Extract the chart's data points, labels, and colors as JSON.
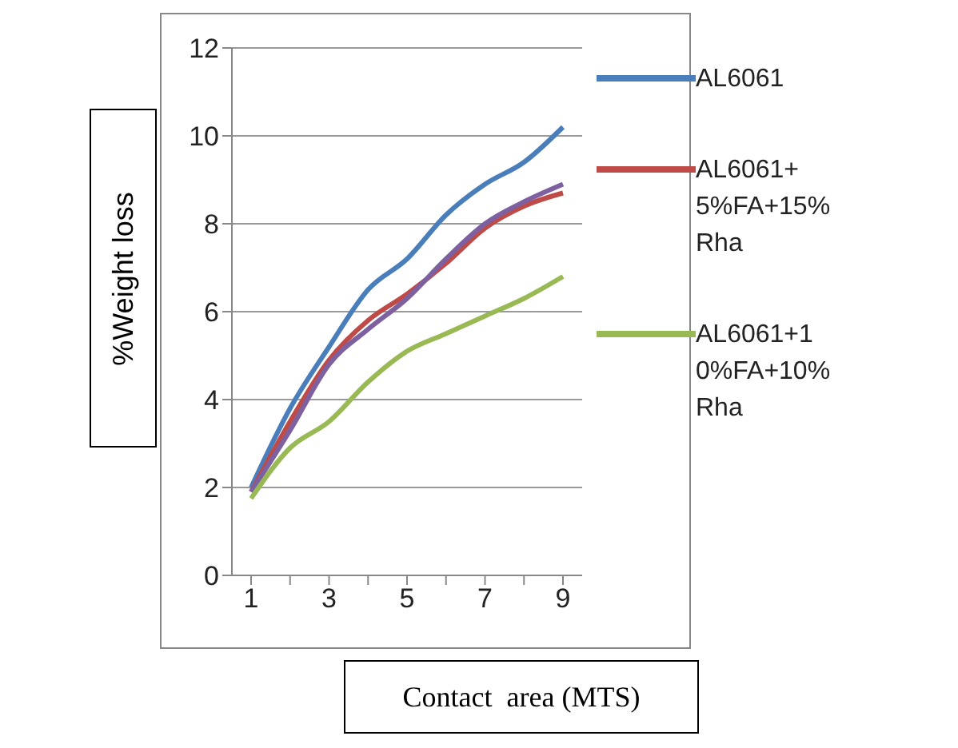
{
  "chart_data": {
    "type": "line",
    "xlabel": "Contact  area (MTS)",
    "ylabel": "%Weight loss",
    "categories": [
      "1",
      null,
      "3",
      null,
      "5",
      null,
      "7",
      null,
      "9"
    ],
    "series": [
      {
        "name": "AL6061",
        "color": "#4a7ebb",
        "values": [
          2.0,
          3.8,
          5.2,
          6.5,
          7.2,
          8.2,
          8.9,
          9.4,
          10.2
        ]
      },
      {
        "name": "AL6061+5%FA+15%Rha",
        "color": "#be4b48",
        "values": [
          1.9,
          3.5,
          4.9,
          5.8,
          6.4,
          7.1,
          7.9,
          8.4,
          8.7
        ]
      },
      {
        "color": "#7d60a0",
        "values": [
          1.9,
          3.3,
          4.8,
          5.6,
          6.3,
          7.2,
          8.0,
          8.5,
          8.9
        ]
      },
      {
        "name": "AL6061+10%FA+10%Rha",
        "color": "#98b954",
        "values": [
          1.75,
          2.9,
          3.5,
          4.4,
          5.1,
          5.5,
          5.9,
          6.3,
          6.8
        ]
      }
    ],
    "ylim": [
      0,
      12
    ],
    "yticks": [
      0,
      2,
      4,
      6,
      8,
      10,
      12
    ],
    "grid": "y",
    "legend": "right",
    "marker": "none",
    "line_style": "solid"
  }
}
